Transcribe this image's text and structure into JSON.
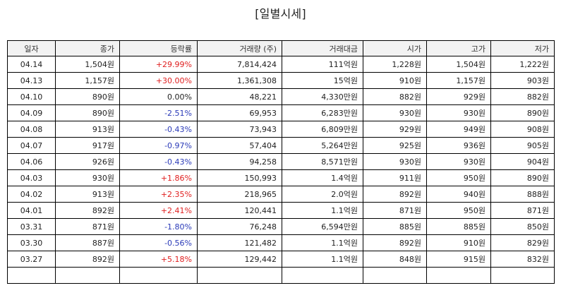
{
  "title": "[일별시세]",
  "headers": [
    "일자",
    "종가",
    "등락률",
    "거래량 (주)",
    "거래대금",
    "시가",
    "고가",
    "저가"
  ],
  "rows": [
    {
      "date": "04.14",
      "close": "1,504원",
      "change": "+29.99%",
      "dir": "up",
      "volume": "7,814,424",
      "amount": "111억원",
      "open": "1,228원",
      "high": "1,504원",
      "low": "1,222원"
    },
    {
      "date": "04.13",
      "close": "1,157원",
      "change": "+30.00%",
      "dir": "up",
      "volume": "1,361,308",
      "amount": "15억원",
      "open": "910원",
      "high": "1,157원",
      "low": "903원"
    },
    {
      "date": "04.10",
      "close": "890원",
      "change": "0.00%",
      "dir": "flat",
      "volume": "48,221",
      "amount": "4,330만원",
      "open": "882원",
      "high": "929원",
      "low": "882원"
    },
    {
      "date": "04.09",
      "close": "890원",
      "change": "-2.51%",
      "dir": "down",
      "volume": "69,953",
      "amount": "6,283만원",
      "open": "930원",
      "high": "930원",
      "low": "890원"
    },
    {
      "date": "04.08",
      "close": "913원",
      "change": "-0.43%",
      "dir": "down",
      "volume": "73,943",
      "amount": "6,809만원",
      "open": "929원",
      "high": "949원",
      "low": "908원"
    },
    {
      "date": "04.07",
      "close": "917원",
      "change": "-0.97%",
      "dir": "down",
      "volume": "57,404",
      "amount": "5,264만원",
      "open": "925원",
      "high": "936원",
      "low": "905원"
    },
    {
      "date": "04.06",
      "close": "926원",
      "change": "-0.43%",
      "dir": "down",
      "volume": "94,258",
      "amount": "8,571만원",
      "open": "930원",
      "high": "930원",
      "low": "904원"
    },
    {
      "date": "04.03",
      "close": "930원",
      "change": "+1.86%",
      "dir": "up",
      "volume": "150,993",
      "amount": "1.4억원",
      "open": "911원",
      "high": "950원",
      "low": "890원"
    },
    {
      "date": "04.02",
      "close": "913원",
      "change": "+2.35%",
      "dir": "up",
      "volume": "218,965",
      "amount": "2.0억원",
      "open": "892원",
      "high": "940원",
      "low": "888원"
    },
    {
      "date": "04.01",
      "close": "892원",
      "change": "+2.41%",
      "dir": "up",
      "volume": "120,441",
      "amount": "1.1억원",
      "open": "871원",
      "high": "950원",
      "low": "871원"
    },
    {
      "date": "03.31",
      "close": "871원",
      "change": "-1.80%",
      "dir": "down",
      "volume": "76,248",
      "amount": "6,594만원",
      "open": "885원",
      "high": "885원",
      "low": "850원"
    },
    {
      "date": "03.30",
      "close": "887원",
      "change": "-0.56%",
      "dir": "down",
      "volume": "121,482",
      "amount": "1.1억원",
      "open": "892원",
      "high": "910원",
      "low": "829원"
    },
    {
      "date": "03.27",
      "close": "892원",
      "change": "+5.18%",
      "dir": "up",
      "volume": "129,442",
      "amount": "1.1억원",
      "open": "848원",
      "high": "915원",
      "low": "832원"
    },
    {
      "date": "",
      "close": "",
      "change": "",
      "dir": "flat",
      "volume": "",
      "amount": "",
      "open": "",
      "high": "",
      "low": ""
    }
  ],
  "colors": {
    "up": "#e02020",
    "down": "#2a3ab8",
    "header_bg": "#f2f2f2"
  }
}
